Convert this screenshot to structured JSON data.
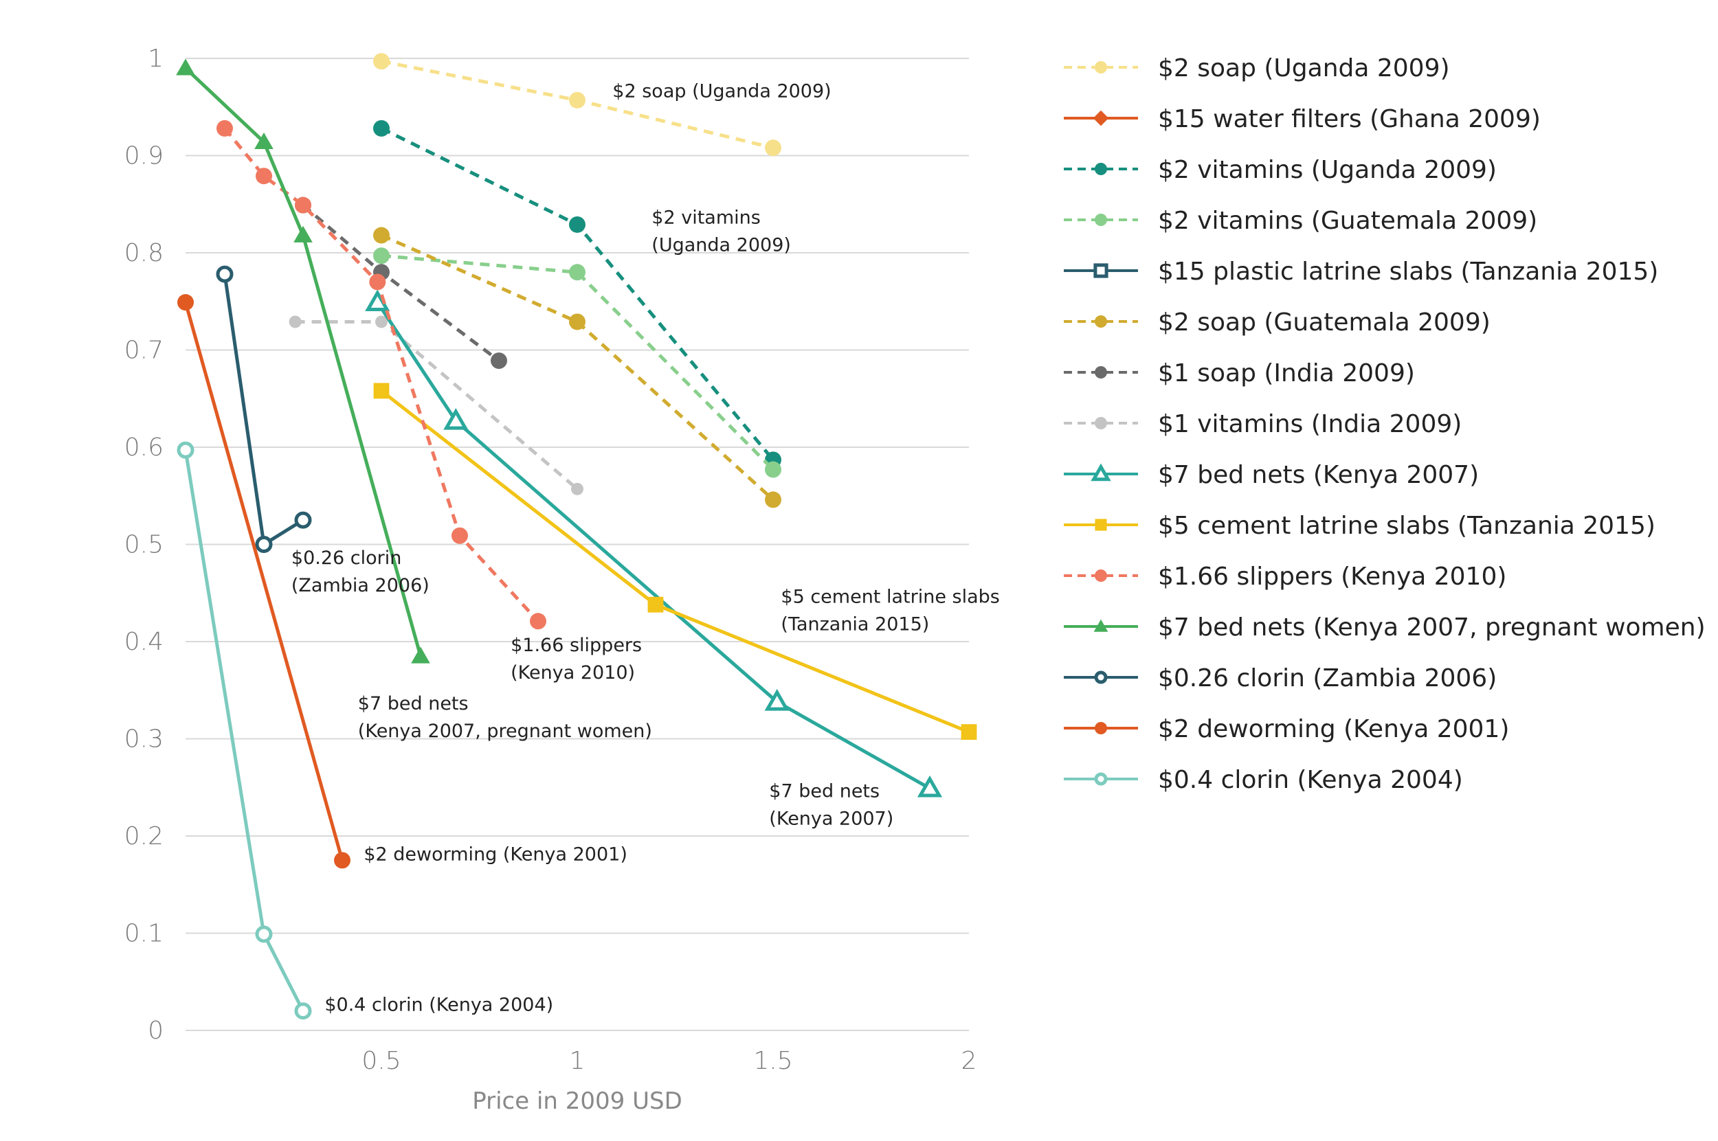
{
  "chart_data": {
    "type": "line",
    "title": "",
    "xlabel": "Price in 2009 USD",
    "ylabel": "",
    "xlim": [
      0,
      2
    ],
    "ylim": [
      0,
      1
    ],
    "x_ticks": [
      "0.5",
      "1",
      "1.5",
      "2"
    ],
    "y_ticks": [
      "0",
      "0.1",
      "0.2",
      "0.3",
      "0.4",
      "0.5",
      "0.6",
      "0.7",
      "0.8",
      "0.9",
      "1"
    ],
    "grid": true,
    "legend_position": "right",
    "series": [
      {
        "name": "$2 soap (Uganda 2009)",
        "color": "#f7e08a",
        "dash": true,
        "marker": "circle",
        "filled": true,
        "points": [
          [
            0.5,
            0.997
          ],
          [
            1.0,
            0.957
          ],
          [
            1.5,
            0.908
          ]
        ],
        "label_lines": [
          "$2 soap (Uganda 2009)"
        ],
        "label_anchor": [
          1.09,
          0.96
        ]
      },
      {
        "name": "$15 water filters (Ghana 2009)",
        "color": "#e05a22",
        "dash": false,
        "marker": "diamond",
        "filled": true,
        "points": [],
        "label_lines": [],
        "label_anchor": null
      },
      {
        "name": "$2 vitamins (Uganda 2009)",
        "color": "#178f7e",
        "dash": true,
        "marker": "circle",
        "filled": true,
        "points": [
          [
            0.5,
            0.928
          ],
          [
            1.0,
            0.829
          ],
          [
            1.5,
            0.587
          ]
        ],
        "label_lines": [
          "$2 vitamins",
          "(Uganda 2009)"
        ],
        "label_anchor": [
          1.19,
          0.83
        ]
      },
      {
        "name": "$2 vitamins (Guatemala 2009)",
        "color": "#88cf8c",
        "dash": true,
        "marker": "circle",
        "filled": true,
        "points": [
          [
            0.5,
            0.797
          ],
          [
            1.0,
            0.78
          ],
          [
            1.5,
            0.577
          ]
        ],
        "label_lines": [],
        "label_anchor": null
      },
      {
        "name": "$15 plastic latrine slabs (Tanzania 2015)",
        "color": "#2a5d6e",
        "dash": false,
        "marker": "square",
        "filled": false,
        "points": [],
        "label_lines": [],
        "label_anchor": null
      },
      {
        "name": "$2 soap (Guatemala 2009)",
        "color": "#d1ab2f",
        "dash": true,
        "marker": "circle",
        "filled": true,
        "points": [
          [
            0.5,
            0.818
          ],
          [
            1.0,
            0.729
          ],
          [
            1.5,
            0.546
          ]
        ],
        "label_lines": [],
        "label_anchor": null
      },
      {
        "name": "$1 soap (India 2009)",
        "color": "#6b6b6b",
        "dash": true,
        "marker": "circle",
        "filled": true,
        "points": [
          [
            0.3,
            0.849
          ],
          [
            0.5,
            0.78
          ],
          [
            0.8,
            0.689
          ]
        ],
        "label_lines": [],
        "label_anchor": null
      },
      {
        "name": "$1 vitamins (India 2009)",
        "color": "#c4c4c4",
        "dash": true,
        "marker": "circle",
        "filled": true,
        "small": true,
        "points": [
          [
            0.28,
            0.729
          ],
          [
            0.5,
            0.729
          ],
          [
            1.0,
            0.557
          ]
        ],
        "label_lines": [],
        "label_anchor": null
      },
      {
        "name": "$7 bed nets (Kenya 2007)",
        "color": "#2aa89c",
        "dash": false,
        "marker": "triangle",
        "filled": false,
        "points": [
          [
            0.49,
            0.749
          ],
          [
            0.69,
            0.627
          ],
          [
            1.51,
            0.338
          ],
          [
            1.9,
            0.249
          ]
        ],
        "label_lines": [
          "$7 bed nets",
          "(Kenya 2007)"
        ],
        "label_anchor": [
          1.49,
          0.24
        ]
      },
      {
        "name": "$5 cement latrine slabs (Tanzania 2015)",
        "color": "#f2c318",
        "dash": false,
        "marker": "square",
        "filled": true,
        "points": [
          [
            0.5,
            0.658
          ],
          [
            1.2,
            0.438
          ],
          [
            2.0,
            0.307
          ]
        ],
        "label_lines": [
          "$5 cement latrine slabs",
          "(Tanzania 2015)"
        ],
        "label_anchor": [
          1.52,
          0.44
        ]
      },
      {
        "name": "$1.66 slippers (Kenya 2010)",
        "color": "#f07860",
        "dash": true,
        "marker": "circle",
        "filled": true,
        "points": [
          [
            0.1,
            0.928
          ],
          [
            0.2,
            0.879
          ],
          [
            0.3,
            0.849
          ],
          [
            0.49,
            0.77
          ],
          [
            0.7,
            0.509
          ],
          [
            0.9,
            0.421
          ]
        ],
        "label_lines": [
          "$1.66 slippers",
          "(Kenya 2010)"
        ],
        "label_anchor": [
          0.83,
          0.39
        ]
      },
      {
        "name": "$7 bed nets (Kenya 2007, pregnant women)",
        "color": "#45ae5a",
        "dash": false,
        "marker": "triangle",
        "filled": true,
        "points": [
          [
            0.0,
            0.99
          ],
          [
            0.2,
            0.914
          ],
          [
            0.3,
            0.818
          ],
          [
            0.6,
            0.385
          ]
        ],
        "label_lines": [
          "$7 bed nets",
          "(Kenya 2007, pregnant women)"
        ],
        "label_anchor": [
          0.44,
          0.33
        ]
      },
      {
        "name": "$0.26 clorin (Zambia 2006)",
        "color": "#2a5d6e",
        "dash": false,
        "marker": "circle",
        "filled": false,
        "points": [
          [
            0.1,
            0.778
          ],
          [
            0.2,
            0.5
          ],
          [
            0.3,
            0.525
          ]
        ],
        "label_lines": [
          "$0.26 clorin",
          "(Zambia 2006)"
        ],
        "label_anchor": [
          0.27,
          0.48
        ]
      },
      {
        "name": "$2 deworming (Kenya 2001)",
        "color": "#e05a22",
        "dash": false,
        "marker": "circle",
        "filled": true,
        "points": [
          [
            0.0,
            0.749
          ],
          [
            0.4,
            0.175
          ]
        ],
        "label_lines": [
          "$2 deworming (Kenya 2001)"
        ],
        "label_anchor": [
          0.455,
          0.175
        ]
      },
      {
        "name": "$0.4 clorin (Kenya 2004)",
        "color": "#7ccbbe",
        "dash": false,
        "marker": "circle",
        "filled": false,
        "points": [
          [
            0.0,
            0.597
          ],
          [
            0.2,
            0.099
          ],
          [
            0.3,
            0.02
          ]
        ],
        "label_lines": [
          "$0.4 clorin (Kenya 2004)"
        ],
        "label_anchor": [
          0.355,
          0.02
        ]
      }
    ]
  }
}
